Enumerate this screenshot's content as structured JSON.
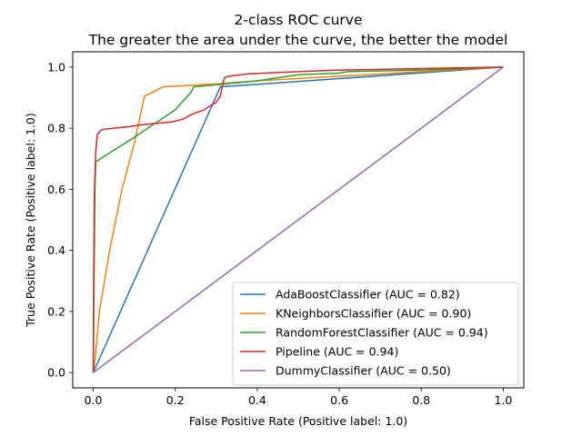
{
  "chart_data": {
    "type": "line",
    "title": "2-class ROC curve",
    "subtitle": "The greater the area under the curve, the better the model",
    "xlabel": "False Positive Rate (Positive label: 1.0)",
    "ylabel": "True Positive Rate (Positive label: 1.0)",
    "xlim": [
      -0.05,
      1.05
    ],
    "ylim": [
      -0.05,
      1.05
    ],
    "xticks": [
      "0.0",
      "0.2",
      "0.4",
      "0.6",
      "0.8",
      "1.0"
    ],
    "yticks": [
      "0.0",
      "0.2",
      "0.4",
      "0.6",
      "0.8",
      "1.0"
    ],
    "grid": false,
    "legend_position": "lower-right",
    "series": [
      {
        "name": "AdaBoostClassifier (AUC = 0.82)",
        "color": "#1f77b4",
        "points": [
          [
            0,
            0
          ],
          [
            0.31,
            0.935
          ],
          [
            1.0,
            1.0
          ]
        ]
      },
      {
        "name": "KNeighborsClassifier (AUC = 0.90)",
        "color": "#ff7f0e",
        "points": [
          [
            0,
            0
          ],
          [
            0.005,
            0.05
          ],
          [
            0.015,
            0.2
          ],
          [
            0.04,
            0.4
          ],
          [
            0.07,
            0.6
          ],
          [
            0.1,
            0.75
          ],
          [
            0.125,
            0.905
          ],
          [
            0.14,
            0.915
          ],
          [
            0.155,
            0.925
          ],
          [
            0.17,
            0.935
          ],
          [
            0.3,
            0.945
          ],
          [
            0.4,
            0.955
          ],
          [
            0.6,
            0.97
          ],
          [
            0.8,
            0.985
          ],
          [
            1.0,
            1.0
          ]
        ]
      },
      {
        "name": "RandomForestClassifier (AUC = 0.94)",
        "color": "#2ca02c",
        "points": [
          [
            0,
            0
          ],
          [
            0.002,
            0.3
          ],
          [
            0.004,
            0.6
          ],
          [
            0.006,
            0.69
          ],
          [
            0.1,
            0.77
          ],
          [
            0.2,
            0.86
          ],
          [
            0.24,
            0.92
          ],
          [
            0.245,
            0.935
          ],
          [
            0.3,
            0.942
          ],
          [
            0.4,
            0.955
          ],
          [
            0.45,
            0.965
          ],
          [
            0.5,
            0.975
          ],
          [
            0.6,
            0.98
          ],
          [
            0.62,
            0.985
          ],
          [
            0.8,
            0.99
          ],
          [
            1.0,
            1.0
          ]
        ]
      },
      {
        "name": "Pipeline (AUC = 0.94)",
        "color": "#d62728",
        "points": [
          [
            0,
            0
          ],
          [
            0.001,
            0.3
          ],
          [
            0.003,
            0.6
          ],
          [
            0.006,
            0.72
          ],
          [
            0.01,
            0.78
          ],
          [
            0.02,
            0.795
          ],
          [
            0.05,
            0.8
          ],
          [
            0.09,
            0.805
          ],
          [
            0.11,
            0.81
          ],
          [
            0.15,
            0.815
          ],
          [
            0.19,
            0.82
          ],
          [
            0.22,
            0.83
          ],
          [
            0.24,
            0.845
          ],
          [
            0.27,
            0.86
          ],
          [
            0.3,
            0.885
          ],
          [
            0.31,
            0.905
          ],
          [
            0.315,
            0.94
          ],
          [
            0.32,
            0.965
          ],
          [
            0.33,
            0.97
          ],
          [
            0.38,
            0.978
          ],
          [
            0.45,
            0.982
          ],
          [
            0.5,
            0.985
          ],
          [
            0.6,
            0.99
          ],
          [
            0.8,
            0.995
          ],
          [
            1.0,
            1.0
          ]
        ]
      },
      {
        "name": "DummyClassifier (AUC = 0.50)",
        "color": "#9467bd",
        "points": [
          [
            0,
            0
          ],
          [
            1.0,
            1.0
          ]
        ]
      }
    ]
  }
}
